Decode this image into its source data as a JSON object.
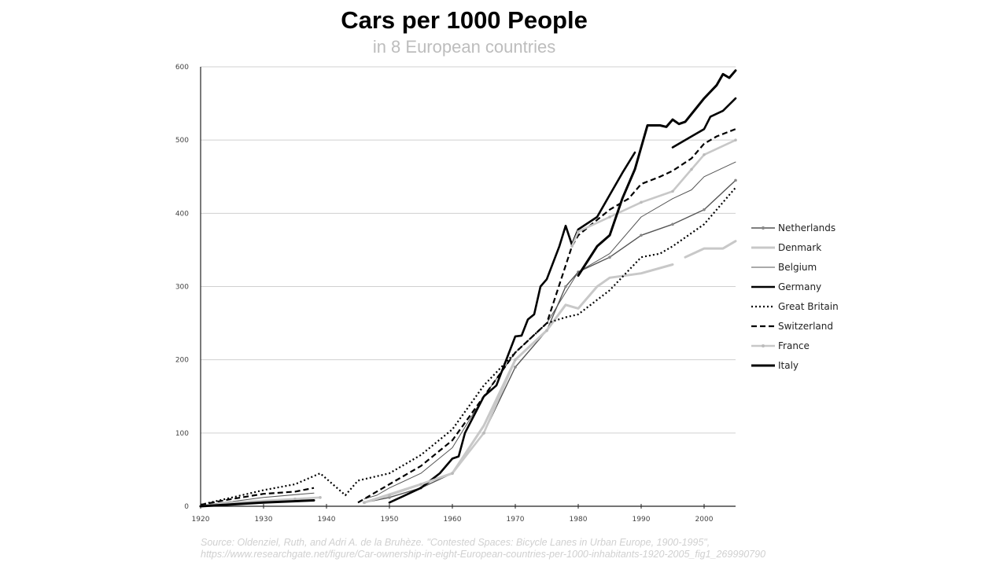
{
  "chart_data": {
    "type": "line",
    "title": "Cars per 1000 People",
    "subtitle": "in 8 European countries",
    "xlabel": "",
    "ylabel": "",
    "xlim": [
      1920,
      2005
    ],
    "ylim": [
      0,
      600
    ],
    "xticks": [
      "1920",
      "1930",
      "1940",
      "1950",
      "1960",
      "1970",
      "1980",
      "1990",
      "2000"
    ],
    "yticks": [
      "0",
      "100",
      "200",
      "300",
      "400",
      "500",
      "600"
    ],
    "grid": "horizontal",
    "legend_position": "right",
    "series": [
      {
        "name": "Netherlands",
        "color": "#555555",
        "width": 1.4,
        "dash": "",
        "markers": true,
        "points": [
          [
            1946,
            5
          ],
          [
            1950,
            12
          ],
          [
            1955,
            25
          ],
          [
            1960,
            45
          ],
          [
            1965,
            100
          ],
          [
            1970,
            190
          ],
          [
            1975,
            240
          ],
          [
            1978,
            300
          ],
          [
            1980,
            320
          ],
          [
            1985,
            340
          ],
          [
            1990,
            370
          ],
          [
            1995,
            385
          ],
          [
            2000,
            405
          ],
          [
            2005,
            445
          ]
        ]
      },
      {
        "name": "Denmark",
        "color": "#c8c8c8",
        "width": 3,
        "dash": "",
        "markers": false,
        "points": [
          [
            1946,
            5
          ],
          [
            1955,
            30
          ],
          [
            1960,
            45
          ],
          [
            1965,
            110
          ],
          [
            1970,
            200
          ],
          [
            1975,
            240
          ],
          [
            1978,
            275
          ],
          [
            1980,
            270
          ],
          [
            1983,
            300
          ],
          [
            1985,
            312
          ],
          [
            1990,
            318
          ],
          [
            1995,
            330
          ],
          null,
          [
            1997,
            340
          ],
          [
            2000,
            352
          ],
          [
            2003,
            352
          ],
          [
            2005,
            362
          ]
        ]
      },
      {
        "name": "Belgium",
        "color": "#555555",
        "width": 1,
        "dash": "",
        "markers": false,
        "points": [
          [
            1920,
            1
          ],
          [
            1930,
            12
          ],
          [
            1938,
            18
          ],
          null,
          [
            1946,
            10
          ],
          [
            1948,
            15
          ],
          [
            1950,
            25
          ],
          [
            1955,
            45
          ],
          [
            1960,
            80
          ],
          [
            1965,
            150
          ],
          [
            1970,
            210
          ],
          [
            1975,
            250
          ],
          [
            1980,
            320
          ],
          [
            1985,
            345
          ],
          [
            1990,
            395
          ],
          [
            1995,
            420
          ],
          [
            1998,
            432
          ],
          [
            2000,
            450
          ],
          [
            2005,
            470
          ]
        ]
      },
      {
        "name": "Germany",
        "color": "#000000",
        "width": 2.6,
        "dash": "",
        "markers": false,
        "points": [
          [
            1950,
            5
          ],
          [
            1955,
            25
          ],
          [
            1958,
            45
          ],
          [
            1960,
            65
          ],
          [
            1961,
            68
          ],
          [
            1962,
            100
          ],
          [
            1965,
            150
          ],
          [
            1967,
            165
          ],
          [
            1970,
            232
          ],
          [
            1971,
            233
          ],
          [
            1972,
            255
          ],
          [
            1973,
            262
          ],
          [
            1974,
            300
          ],
          [
            1975,
            310
          ],
          [
            1977,
            355
          ],
          [
            1978,
            383
          ],
          [
            1979,
            357
          ],
          [
            1980,
            378
          ],
          [
            1983,
            395
          ],
          [
            1985,
            425
          ],
          [
            1987,
            455
          ],
          [
            1989,
            483
          ],
          null,
          [
            1995,
            490
          ],
          [
            1998,
            505
          ],
          [
            2000,
            515
          ],
          [
            2001,
            532
          ],
          [
            2003,
            540
          ],
          [
            2005,
            557
          ]
        ]
      },
      {
        "name": "Great Britain",
        "color": "#000000",
        "width": 2.2,
        "dash": "2,3",
        "markers": false,
        "points": [
          [
            1920,
            2
          ],
          [
            1925,
            12
          ],
          [
            1930,
            22
          ],
          [
            1935,
            30
          ],
          [
            1939,
            45
          ],
          [
            1941,
            30
          ],
          [
            1943,
            15
          ],
          [
            1945,
            35
          ],
          [
            1950,
            45
          ],
          [
            1955,
            70
          ],
          [
            1960,
            105
          ],
          [
            1965,
            165
          ],
          [
            1970,
            210
          ],
          [
            1975,
            250
          ],
          [
            1978,
            258
          ],
          null,
          [
            1978,
            258
          ],
          [
            1980,
            262
          ],
          [
            1985,
            295
          ],
          [
            1990,
            340
          ],
          [
            1993,
            345
          ],
          [
            1995,
            355
          ],
          [
            2000,
            385
          ],
          [
            2005,
            435
          ]
        ]
      },
      {
        "name": "Switzerland",
        "color": "#000000",
        "width": 2.2,
        "dash": "7,4",
        "markers": false,
        "points": [
          [
            1920,
            2
          ],
          [
            1925,
            10
          ],
          [
            1930,
            17
          ],
          [
            1935,
            20
          ],
          [
            1938,
            25
          ],
          null,
          [
            1945,
            5
          ],
          [
            1950,
            30
          ],
          [
            1955,
            55
          ],
          [
            1960,
            90
          ],
          [
            1965,
            150
          ],
          [
            1970,
            210
          ],
          [
            1975,
            250
          ],
          [
            1979,
            355
          ],
          [
            1980,
            370
          ],
          [
            1985,
            405
          ],
          [
            1988,
            420
          ],
          [
            1990,
            440
          ],
          [
            1993,
            450
          ],
          [
            1995,
            458
          ],
          [
            1998,
            475
          ],
          [
            2000,
            495
          ],
          [
            2002,
            505
          ],
          [
            2005,
            515
          ]
        ]
      },
      {
        "name": "France",
        "color": "#c8c8c8",
        "width": 2.6,
        "dash": "",
        "markers": true,
        "points": [
          [
            1920,
            0
          ],
          [
            1925,
            5
          ],
          [
            1935,
            10
          ],
          [
            1939,
            12
          ],
          null,
          [
            1946,
            5
          ],
          [
            1950,
            15
          ],
          [
            1955,
            30
          ],
          [
            1960,
            45
          ],
          [
            1965,
            100
          ],
          [
            1970,
            200
          ],
          [
            1975,
            240
          ],
          null,
          [
            1979,
            355
          ],
          [
            1980,
            375
          ],
          [
            1985,
            395
          ],
          [
            1990,
            415
          ],
          [
            1995,
            430
          ],
          [
            1998,
            460
          ],
          [
            2000,
            480
          ],
          [
            2005,
            500
          ]
        ]
      },
      {
        "name": "Italy",
        "color": "#000000",
        "width": 3,
        "dash": "",
        "markers": false,
        "points": [
          [
            1920,
            0
          ],
          [
            1930,
            5
          ],
          [
            1938,
            8
          ],
          null,
          [
            1980,
            315
          ],
          [
            1983,
            355
          ],
          [
            1985,
            370
          ],
          [
            1987,
            420
          ],
          [
            1989,
            460
          ],
          [
            1991,
            520
          ],
          [
            1993,
            520
          ],
          [
            1994,
            518
          ],
          [
            1995,
            528
          ],
          [
            1996,
            522
          ],
          [
            1997,
            525
          ],
          [
            2000,
            557
          ],
          [
            2002,
            575
          ],
          [
            2003,
            590
          ],
          [
            2004,
            585
          ],
          [
            2005,
            595
          ]
        ]
      }
    ]
  },
  "source": {
    "line1": "Source: Oldenziel, Ruth, and Adri A. de la Bruhèze. \"Contested Spaces: Bicycle Lanes in Urban Europe, 1900-1995\",",
    "line2": "https://www.researchgate.net/figure/Car-ownership-in-eight-European-countries-per-1000-inhabitants-1920-2005_fig1_269990790"
  }
}
